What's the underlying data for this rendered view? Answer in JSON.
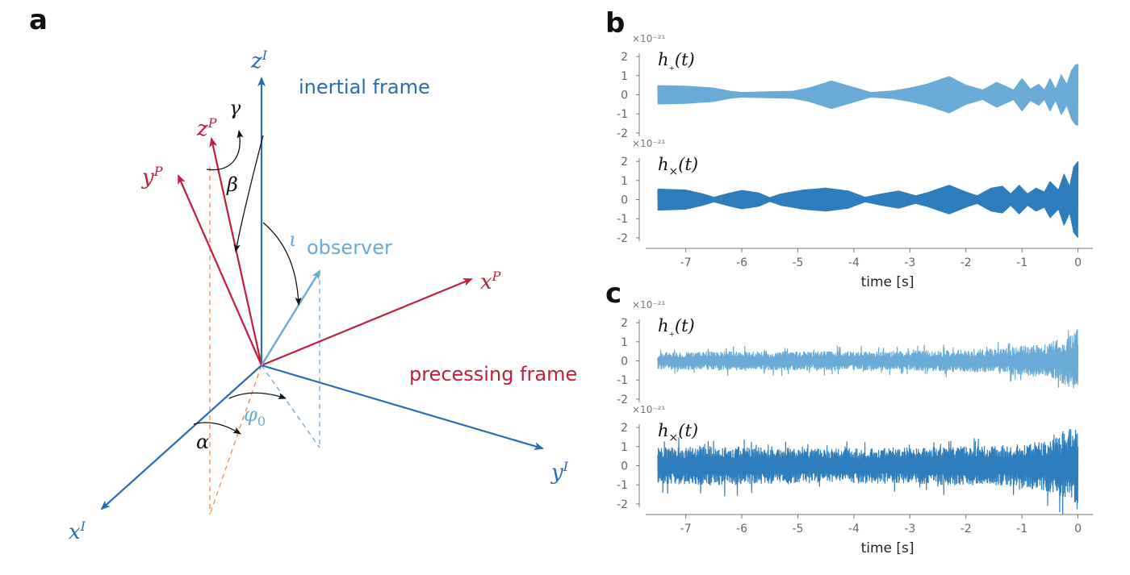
{
  "panel_labels": {
    "a": "a",
    "b": "b",
    "c": "c"
  },
  "diagram": {
    "inertial_caption": "inertial frame",
    "precessing_caption": "precessing frame",
    "observer_caption": "observer",
    "axes": {
      "zI": {
        "base": "z",
        "sup": "I"
      },
      "xI": {
        "base": "x",
        "sup": "I"
      },
      "yI": {
        "base": "y",
        "sup": "I"
      },
      "zP": {
        "base": "z",
        "sup": "P"
      },
      "yP": {
        "base": "y",
        "sup": "P"
      },
      "xP": {
        "base": "x",
        "sup": "P"
      }
    },
    "angles": {
      "alpha": "α",
      "beta": "β",
      "gamma": "γ",
      "iota": "ι",
      "phi0_base": "φ",
      "phi0_sub": "0"
    },
    "colors": {
      "inertial": "#2a6cb4",
      "precessing": "#bf1e3c",
      "observer": "#6aaad6",
      "projection_orange": "#f08a4b",
      "arc": "#111111"
    }
  },
  "chart_data": [
    {
      "panel": "b",
      "type": "line",
      "series": [
        {
          "name": "h₊(t)",
          "color": "#6aaad6",
          "envelope_knots": [
            [
              -7.5,
              0.48
            ],
            [
              -7.0,
              0.45
            ],
            [
              -6.5,
              0.35
            ],
            [
              -6.2,
              0.18
            ],
            [
              -6.0,
              0.12
            ],
            [
              -5.5,
              0.16
            ],
            [
              -5.1,
              0.18
            ],
            [
              -4.8,
              0.35
            ],
            [
              -4.4,
              0.72
            ],
            [
              -4.0,
              0.38
            ],
            [
              -3.7,
              0.12
            ],
            [
              -3.3,
              0.2
            ],
            [
              -3.0,
              0.35
            ],
            [
              -2.7,
              0.55
            ],
            [
              -2.3,
              0.95
            ],
            [
              -2.0,
              0.5
            ],
            [
              -1.7,
              0.25
            ],
            [
              -1.45,
              0.65
            ],
            [
              -1.3,
              0.45
            ],
            [
              -1.15,
              0.25
            ],
            [
              -1.0,
              0.85
            ],
            [
              -0.85,
              0.3
            ],
            [
              -0.7,
              0.55
            ],
            [
              -0.6,
              0.25
            ],
            [
              -0.5,
              0.85
            ],
            [
              -0.4,
              0.3
            ],
            [
              -0.3,
              1.05
            ],
            [
              -0.2,
              0.55
            ],
            [
              -0.12,
              1.25
            ],
            [
              -0.05,
              1.55
            ],
            [
              0.0,
              1.6
            ]
          ],
          "noise": 0
        },
        {
          "name": "h×(t)",
          "color": "#2d7dbd",
          "envelope_knots": [
            [
              -7.5,
              0.55
            ],
            [
              -7.0,
              0.5
            ],
            [
              -6.7,
              0.3
            ],
            [
              -6.5,
              0.12
            ],
            [
              -6.2,
              0.35
            ],
            [
              -6.0,
              0.48
            ],
            [
              -5.7,
              0.35
            ],
            [
              -5.5,
              0.1
            ],
            [
              -5.3,
              0.3
            ],
            [
              -4.9,
              0.5
            ],
            [
              -4.5,
              0.6
            ],
            [
              -4.1,
              0.45
            ],
            [
              -3.8,
              0.12
            ],
            [
              -3.5,
              0.3
            ],
            [
              -3.2,
              0.45
            ],
            [
              -2.9,
              0.2
            ],
            [
              -2.7,
              0.35
            ],
            [
              -2.3,
              0.75
            ],
            [
              -2.0,
              0.4
            ],
            [
              -1.8,
              0.2
            ],
            [
              -1.55,
              0.6
            ],
            [
              -1.35,
              0.7
            ],
            [
              -1.2,
              0.3
            ],
            [
              -1.05,
              0.75
            ],
            [
              -0.9,
              0.3
            ],
            [
              -0.75,
              0.6
            ],
            [
              -0.6,
              0.4
            ],
            [
              -0.5,
              0.95
            ],
            [
              -0.35,
              0.5
            ],
            [
              -0.25,
              1.35
            ],
            [
              -0.15,
              0.7
            ],
            [
              -0.08,
              1.7
            ],
            [
              0.0,
              2.0
            ]
          ],
          "noise": 0
        }
      ],
      "xlabel": "time [s]",
      "xlim": [
        -7.6,
        0.15
      ],
      "xticks": [
        -7,
        -6,
        -5,
        -4,
        -3,
        -2,
        -1,
        0
      ],
      "ylim": [
        -2.3,
        2.3
      ],
      "yticks": [
        2,
        1,
        0,
        -1,
        -2
      ],
      "y_scale_label": "×10⁻²¹"
    },
    {
      "panel": "c",
      "type": "line",
      "series": [
        {
          "name": "h₊(t)",
          "color": "#6aaad6",
          "envelope_knots": [
            [
              -7.5,
              0.45
            ],
            [
              -6.5,
              0.5
            ],
            [
              -5.5,
              0.5
            ],
            [
              -4.5,
              0.5
            ],
            [
              -3.5,
              0.5
            ],
            [
              -2.5,
              0.55
            ],
            [
              -1.5,
              0.65
            ],
            [
              -1.0,
              0.8
            ],
            [
              -0.6,
              0.9
            ],
            [
              -0.3,
              1.2
            ],
            [
              -0.1,
              1.5
            ],
            [
              0.0,
              1.8
            ]
          ],
          "noise": 0.45
        },
        {
          "name": "h×(t)",
          "color": "#2d7dbd",
          "envelope_knots": [
            [
              -7.5,
              0.9
            ],
            [
              -6.5,
              1.0
            ],
            [
              -5.5,
              0.9
            ],
            [
              -4.5,
              0.85
            ],
            [
              -3.5,
              0.9
            ],
            [
              -2.5,
              0.95
            ],
            [
              -1.5,
              1.0
            ],
            [
              -1.0,
              1.1
            ],
            [
              -0.5,
              1.3
            ],
            [
              -0.2,
              1.8
            ],
            [
              0.0,
              2.1
            ]
          ],
          "noise": 0.55
        }
      ],
      "xlabel": "time [s]",
      "xlim": [
        -7.6,
        0.15
      ],
      "xticks": [
        -7,
        -6,
        -5,
        -4,
        -3,
        -2,
        -1,
        0
      ],
      "ylim": [
        -2.3,
        2.3
      ],
      "yticks": [
        2,
        1,
        0,
        -1,
        -2
      ],
      "y_scale_label": "×10⁻²¹"
    }
  ]
}
